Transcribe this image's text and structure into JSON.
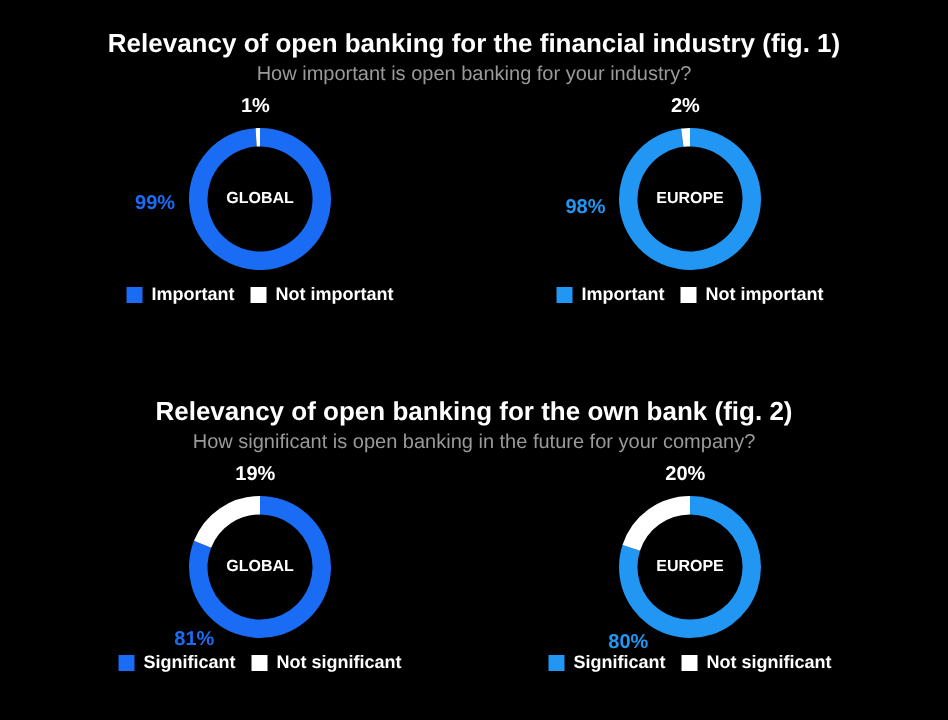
{
  "chart_data": [
    {
      "type": "donut",
      "title": "Relevancy of open banking for the financial industry (fig. 1)",
      "subtitle": "How important is open banking for your industry?",
      "categories": [
        "Important",
        "Not important"
      ],
      "values": [
        99,
        1
      ],
      "colors": [
        "#1a6cf4",
        "#ffffff"
      ],
      "value_labels": [
        "99%",
        "1%"
      ],
      "annotations": [
        "GLOBAL"
      ],
      "legend": "bottom"
    },
    {
      "type": "donut",
      "categories": [
        "Important",
        "Not important"
      ],
      "values": [
        98,
        2
      ],
      "colors": [
        "#2196f3",
        "#ffffff"
      ],
      "value_labels": [
        "98%",
        "2%"
      ],
      "annotations": [
        "EUROPE"
      ],
      "legend": "bottom"
    },
    {
      "type": "donut",
      "title": "Relevancy of open banking for the own bank (fig. 2)",
      "subtitle": "How significant is open banking in the future for your company?",
      "categories": [
        "Significant",
        "Not significant"
      ],
      "values": [
        81,
        19
      ],
      "colors": [
        "#1a6cf4",
        "#ffffff"
      ],
      "value_labels": [
        "81%",
        "19%"
      ],
      "annotations": [
        "GLOBAL"
      ],
      "legend": "bottom"
    },
    {
      "type": "donut",
      "categories": [
        "Significant",
        "Not significant"
      ],
      "values": [
        80,
        20
      ],
      "colors": [
        "#2196f3",
        "#ffffff"
      ],
      "value_labels": [
        "80%",
        "20%"
      ],
      "annotations": [
        "EUROPE"
      ],
      "legend": "bottom"
    }
  ]
}
